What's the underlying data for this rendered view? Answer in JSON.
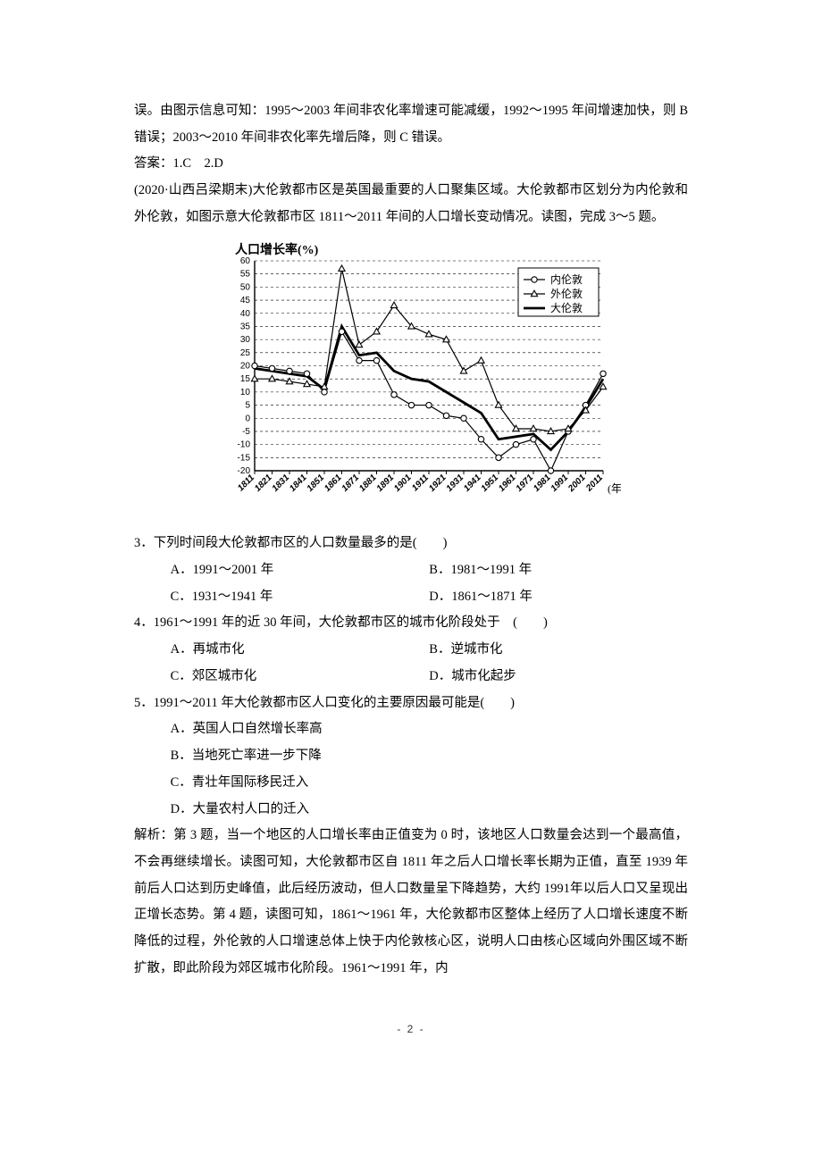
{
  "top_para": "误。由图示信息可知：1995～2003 年间非农化率增速可能减缓，1992～1995 年间增速加快，则 B 错误；2003～2010 年间非农化率先增后降，则 C 错误。",
  "answer12": "答案：1.C　2.D",
  "passage_intro": "(2020·山西吕梁期末)大伦敦都市区是英国最重要的人口聚集区域。大伦敦都市区划分为内伦敦和外伦敦，如图示意大伦敦都市区 1811～2011 年间的人口增长变动情况。读图，完成 3～5 题。",
  "chart": {
    "type": "line",
    "y_title": "人口增长率(%)",
    "x_title": "(年)",
    "ylim": [
      -20,
      60
    ],
    "ytick_step": 5,
    "yticks": [
      -20,
      -15,
      -10,
      -5,
      0,
      5,
      10,
      15,
      20,
      25,
      30,
      35,
      40,
      45,
      50,
      55,
      60
    ],
    "categories": [
      "1811",
      "1821",
      "1831",
      "1841",
      "1851",
      "1861",
      "1871",
      "1881",
      "1891",
      "1901",
      "1911",
      "1921",
      "1931",
      "1941",
      "1951",
      "1961",
      "1971",
      "1981",
      "1991",
      "2001",
      "2011"
    ],
    "legend": {
      "items": [
        "内伦敦",
        "外伦敦",
        "大伦敦"
      ],
      "position": "top-right",
      "border_color": "#000000",
      "background": "#ffffff"
    },
    "series": {
      "inner": {
        "label": "内伦敦",
        "marker": "circle",
        "line_width": 1.2,
        "color": "#000000",
        "values": [
          20,
          19,
          18,
          17,
          10,
          33,
          22,
          22,
          9,
          5,
          5,
          1,
          0,
          -8,
          -15,
          -10,
          -8,
          -20,
          -5,
          5,
          17
        ]
      },
      "outer": {
        "label": "外伦敦",
        "marker": "triangle",
        "line_width": 1.2,
        "color": "#000000",
        "values": [
          15,
          15,
          14,
          13,
          12,
          57,
          28,
          33,
          43,
          35,
          32,
          30,
          18,
          22,
          5,
          -4,
          -4,
          -5,
          -4,
          3,
          12
        ]
      },
      "greater": {
        "label": "大伦敦",
        "marker": "none",
        "line_width": 2.8,
        "color": "#000000",
        "values": [
          19,
          18,
          17,
          16,
          11,
          35,
          24,
          25,
          18,
          15,
          14,
          10,
          6,
          2,
          -8,
          -7,
          -6,
          -12,
          -5,
          4,
          15
        ]
      }
    },
    "grid_color": "#000000",
    "grid_dash": "3,3",
    "axis_color": "#000000",
    "background_color": "#ffffff",
    "title_fontsize": 14,
    "label_fontsize": 12,
    "tick_fontsize": 10
  },
  "q3": {
    "stem": "3．下列时间段大伦敦都市区的人口数量最多的是(　　)",
    "A": "A．1991～2001 年",
    "B": "B．1981～1991 年",
    "C": "C．1931～1941 年",
    "D": "D．1861～1871 年"
  },
  "q4": {
    "stem": "4．1961～1991 年的近 30 年间，大伦敦都市区的城市化阶段处于　(　　)",
    "A": "A．再城市化",
    "B": "B．逆城市化",
    "C": "C．郊区城市化",
    "D": "D．城市化起步"
  },
  "q5": {
    "stem": "5．1991～2011 年大伦敦都市区人口变化的主要原因最可能是(　　)",
    "A": "A．英国人口自然增长率高",
    "B": "B．当地死亡率进一步下降",
    "C": "C．青壮年国际移民迁入",
    "D": "D．大量农村人口的迁入"
  },
  "explanation": "解析：第 3 题，当一个地区的人口增长率由正值变为 0 时，该地区人口数量会达到一个最高值，不会再继续增长。读图可知，大伦敦都市区自 1811 年之后人口增长率长期为正值，直至 1939 年前后人口达到历史峰值，此后经历波动，但人口数量呈下降趋势，大约 1991年以后人口又呈现出正增长态势。第 4 题，读图可知，1861～1961 年，大伦敦都市区整体上经历了人口增长速度不断降低的过程，外伦敦的人口增速总体上快于内伦敦核心区，说明人口由核心区域向外围区域不断扩散，即此阶段为郊区城市化阶段。1961～1991 年，内",
  "page_number": "- 2 -"
}
